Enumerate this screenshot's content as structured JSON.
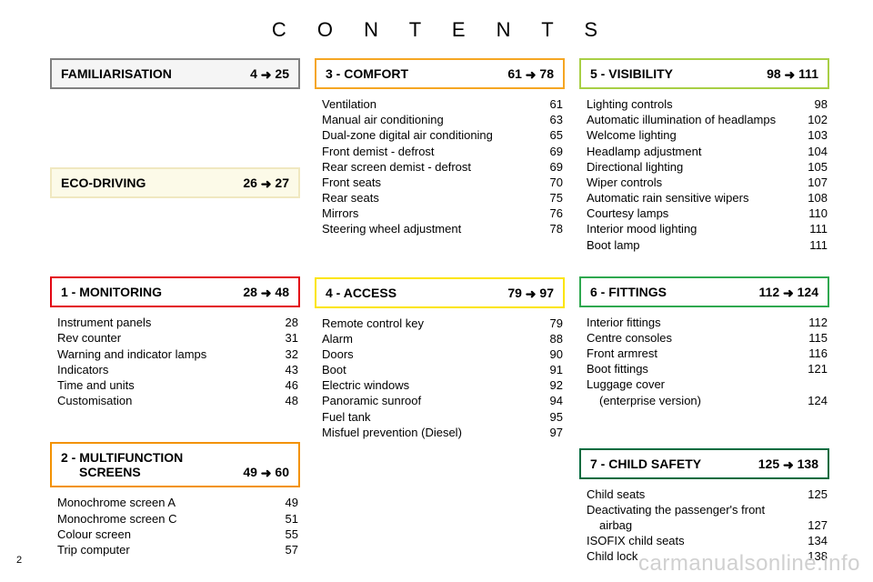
{
  "title": "C O N T E N T S",
  "page_number": "2",
  "watermark": "carmanualsonline.info",
  "arrow": "➜",
  "colors": {
    "grey": "#808080",
    "cream": "#f0e8c0",
    "red": "#e30613",
    "orange": "#f39200",
    "amber": "#f5a623",
    "yellow": "#fce500",
    "lime": "#a8cf45",
    "green": "#2fa84f",
    "dgreen": "#006b3f",
    "text": "#000000",
    "bg": "#ffffff",
    "watermark": "#d0d0d0"
  },
  "col1": {
    "fam": {
      "label": "FAMILIARISATION",
      "from": "4",
      "to": "25"
    },
    "eco": {
      "label": "ECO-DRIVING",
      "from": "26",
      "to": "27"
    },
    "mon": {
      "label": "1 - MONITORING",
      "from": "28",
      "to": "48"
    },
    "mon_items": [
      {
        "t": "Instrument panels",
        "n": "28"
      },
      {
        "t": "Rev counter",
        "n": "31"
      },
      {
        "t": "Warning and indicator lamps",
        "n": "32"
      },
      {
        "t": "Indicators",
        "n": "43"
      },
      {
        "t": "Time and units",
        "n": "46"
      },
      {
        "t": "Customisation",
        "n": "48"
      }
    ],
    "mfs_label1": "2 - MULTIFUNCTION",
    "mfs_label2": "SCREENS",
    "mfs_from": "49",
    "mfs_to": "60",
    "mfs_items": [
      {
        "t": "Monochrome screen A",
        "n": "49"
      },
      {
        "t": "Monochrome screen C",
        "n": "51"
      },
      {
        "t": "Colour screen",
        "n": "55"
      },
      {
        "t": "Trip computer",
        "n": "57"
      }
    ]
  },
  "col2": {
    "comf": {
      "label": "3 - COMFORT",
      "from": "61",
      "to": "78"
    },
    "comf_items": [
      {
        "t": "Ventilation",
        "n": "61"
      },
      {
        "t": "Manual air conditioning",
        "n": "63"
      },
      {
        "t": "Dual-zone digital air conditioning",
        "n": "65"
      },
      {
        "t": "Front demist - defrost",
        "n": "69"
      },
      {
        "t": "Rear screen demist - defrost",
        "n": "69"
      },
      {
        "t": "Front seats",
        "n": "70"
      },
      {
        "t": "Rear seats",
        "n": "75"
      },
      {
        "t": "Mirrors",
        "n": "76"
      },
      {
        "t": "Steering wheel adjustment",
        "n": "78"
      }
    ],
    "acc": {
      "label": "4 - ACCESS",
      "from": "79",
      "to": "97"
    },
    "acc_items": [
      {
        "t": "Remote control key",
        "n": "79"
      },
      {
        "t": "Alarm",
        "n": "88"
      },
      {
        "t": "Doors",
        "n": "90"
      },
      {
        "t": "Boot",
        "n": "91"
      },
      {
        "t": "Electric windows",
        "n": "92"
      },
      {
        "t": "Panoramic sunroof",
        "n": "94"
      },
      {
        "t": "Fuel tank",
        "n": "95"
      },
      {
        "t": "Misfuel prevention (Diesel)",
        "n": "97"
      }
    ]
  },
  "col3": {
    "vis": {
      "label": "5 - VISIBILITY",
      "from": "98",
      "to": "111"
    },
    "vis_items": [
      {
        "t": "Lighting controls",
        "n": "98"
      },
      {
        "t": "Automatic illumination of headlamps",
        "n": "102"
      },
      {
        "t": "Welcome lighting",
        "n": "103"
      },
      {
        "t": "Headlamp adjustment",
        "n": "104"
      },
      {
        "t": "Directional lighting",
        "n": "105"
      },
      {
        "t": "Wiper controls",
        "n": "107"
      },
      {
        "t": "Automatic rain sensitive wipers",
        "n": "108"
      },
      {
        "t": "Courtesy lamps",
        "n": "110"
      },
      {
        "t": "Interior mood lighting",
        "n": "111"
      },
      {
        "t": "Boot lamp",
        "n": "111"
      }
    ],
    "fit": {
      "label": "6 - FITTINGS",
      "from": "112",
      "to": "124"
    },
    "fit_items": [
      {
        "t": "Interior fittings",
        "n": "112"
      },
      {
        "t": "Centre consoles",
        "n": "115"
      },
      {
        "t": "Front armrest",
        "n": "116"
      },
      {
        "t": "Boot fittings",
        "n": "121"
      },
      {
        "t": "Luggage cover",
        "n": ""
      },
      {
        "t": "(enterprise version)",
        "n": "124",
        "indent": true
      }
    ],
    "child": {
      "label": "7 - CHILD SAFETY",
      "from": "125",
      "to": "138"
    },
    "child_items": [
      {
        "t": "Child seats",
        "n": "125"
      },
      {
        "t": "Deactivating the passenger's front",
        "n": ""
      },
      {
        "t": "airbag",
        "n": "127",
        "indent": true
      },
      {
        "t": "ISOFIX child seats",
        "n": "134"
      },
      {
        "t": "Child lock",
        "n": "138"
      }
    ]
  }
}
